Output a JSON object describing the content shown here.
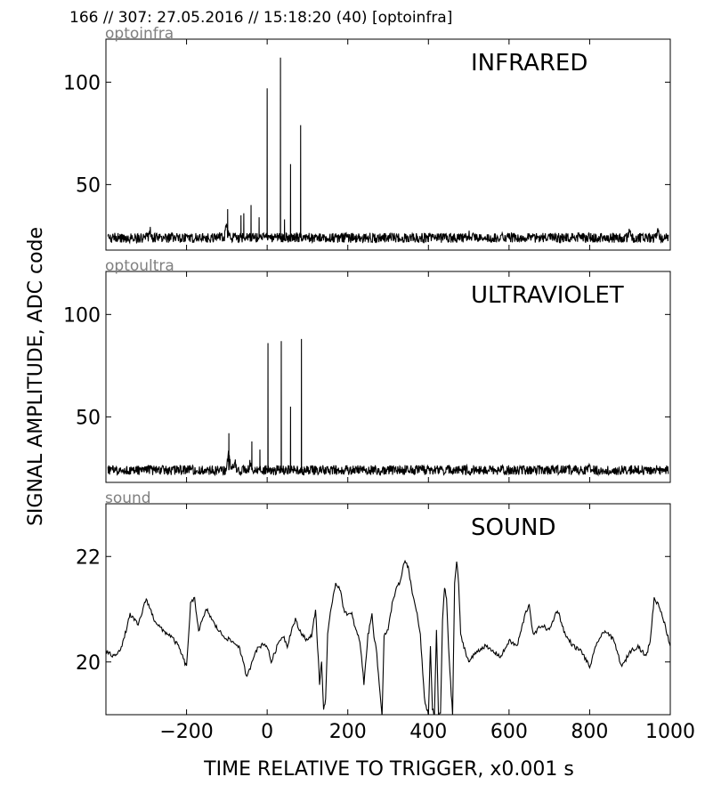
{
  "header": {
    "title": "166 // 307:   27.05.2016 // 15:18:20 (40)  [optoinfra]"
  },
  "figure": {
    "ylabel": "SIGNAL AMPLITUDE,  ADC code",
    "xlabel": "TIME RELATIVE TO TRIGGER,   x0.001 s"
  },
  "colors": {
    "line": "#000000",
    "tag": "#808080",
    "axis": "#000000"
  },
  "chart_data": [
    {
      "type": "line",
      "tag": "optoinfra",
      "title": "INFRARED",
      "xlim": [
        -400,
        1000
      ],
      "ylim": [
        18,
        121
      ],
      "yticks": [
        50,
        100
      ],
      "xticks": [
        -200,
        0,
        200,
        400,
        600,
        800,
        1000
      ],
      "xticklabels": [
        "",
        "",
        "",
        "",
        "",
        "",
        ""
      ],
      "baseline": 24,
      "noise": 1.2,
      "bumps": [
        {
          "x": -290,
          "y": 28
        },
        {
          "x": -120,
          "y": 26
        },
        {
          "x": -100,
          "y": 32
        },
        {
          "x": 500,
          "y": 26
        },
        {
          "x": 900,
          "y": 27
        },
        {
          "x": 970,
          "y": 28
        }
      ],
      "spikes": [
        {
          "x": -98,
          "y": 38
        },
        {
          "x": -65,
          "y": 35
        },
        {
          "x": -58,
          "y": 36
        },
        {
          "x": -40,
          "y": 40
        },
        {
          "x": -20,
          "y": 34
        },
        {
          "x": 0,
          "y": 97
        },
        {
          "x": 33,
          "y": 112
        },
        {
          "x": 43,
          "y": 33
        },
        {
          "x": 58,
          "y": 60
        },
        {
          "x": 83,
          "y": 79
        }
      ]
    },
    {
      "type": "line",
      "tag": "optoultra",
      "title": "ULTRAVIOLET",
      "xlim": [
        -400,
        1000
      ],
      "ylim": [
        18,
        121
      ],
      "yticks": [
        50,
        100
      ],
      "xticks": [
        -200,
        0,
        200,
        400,
        600,
        800,
        1000
      ],
      "xticklabels": [
        "",
        "",
        "",
        "",
        "",
        "",
        ""
      ],
      "baseline": 24,
      "noise": 1.2,
      "bumps": [
        {
          "x": -95,
          "y": 36
        },
        {
          "x": -80,
          "y": 28
        },
        {
          "x": -40,
          "y": 30
        },
        {
          "x": 430,
          "y": 26
        },
        {
          "x": 800,
          "y": 26
        }
      ],
      "spikes": [
        {
          "x": -95,
          "y": 42
        },
        {
          "x": -38,
          "y": 38
        },
        {
          "x": -18,
          "y": 34
        },
        {
          "x": 2,
          "y": 86
        },
        {
          "x": 35,
          "y": 87
        },
        {
          "x": 58,
          "y": 55
        },
        {
          "x": 85,
          "y": 88
        }
      ]
    },
    {
      "type": "line",
      "tag": "sound",
      "title": "SOUND",
      "xlim": [
        -400,
        1000
      ],
      "ylim": [
        19.0,
        23.0
      ],
      "yticks": [
        20,
        22
      ],
      "xticks": [
        -200,
        0,
        200,
        400,
        600,
        800,
        1000
      ],
      "xticklabels": [
        "−200",
        "0",
        "200",
        "400",
        "600",
        "800",
        "1000"
      ],
      "noise": 0.04,
      "x": [
        -400,
        -380,
        -360,
        -340,
        -320,
        -300,
        -280,
        -260,
        -240,
        -220,
        -200,
        -190,
        -180,
        -175,
        -170,
        -150,
        -130,
        -110,
        -90,
        -70,
        -50,
        -30,
        -10,
        0,
        10,
        20,
        30,
        40,
        50,
        60,
        70,
        80,
        90,
        100,
        110,
        120,
        125,
        130,
        135,
        140,
        145,
        150,
        155,
        160,
        170,
        180,
        190,
        200,
        210,
        220,
        230,
        240,
        250,
        260,
        265,
        270,
        280,
        285,
        290,
        300,
        310,
        320,
        330,
        340,
        350,
        360,
        370,
        380,
        390,
        400,
        405,
        410,
        415,
        420,
        425,
        430,
        435,
        440,
        445,
        450,
        455,
        460,
        465,
        470,
        475,
        480,
        500,
        520,
        540,
        560,
        580,
        600,
        620,
        640,
        650,
        660,
        680,
        700,
        720,
        740,
        760,
        780,
        800,
        820,
        840,
        860,
        880,
        900,
        920,
        940,
        950,
        960,
        970,
        980,
        990,
        1000
      ],
      "y": [
        20.2,
        20.1,
        20.3,
        20.9,
        20.7,
        21.2,
        20.8,
        20.6,
        20.5,
        20.3,
        19.9,
        21.1,
        21.2,
        20.9,
        20.6,
        21.0,
        20.7,
        20.5,
        20.4,
        20.3,
        19.7,
        20.2,
        20.35,
        20.3,
        20.0,
        20.2,
        20.4,
        20.5,
        20.3,
        20.6,
        20.8,
        20.6,
        20.5,
        20.4,
        20.5,
        21.0,
        20.3,
        19.6,
        20.0,
        19.1,
        19.3,
        20.5,
        20.8,
        21.1,
        21.5,
        21.4,
        21.0,
        20.9,
        20.9,
        20.6,
        20.4,
        19.6,
        20.5,
        20.9,
        20.5,
        20.3,
        19.4,
        19.0,
        20.5,
        20.6,
        21.1,
        21.4,
        21.5,
        21.9,
        21.8,
        21.3,
        21.0,
        20.5,
        19.3,
        19.0,
        20.3,
        19.1,
        19.0,
        20.6,
        19.0,
        19.0,
        20.8,
        21.4,
        21.2,
        20.3,
        19.6,
        19.0,
        21.5,
        21.9,
        21.5,
        20.5,
        20.0,
        20.2,
        20.3,
        20.2,
        20.1,
        20.4,
        20.3,
        20.9,
        21.1,
        20.5,
        20.7,
        20.6,
        21.0,
        20.5,
        20.3,
        20.2,
        19.9,
        20.4,
        20.6,
        20.4,
        19.9,
        20.2,
        20.3,
        20.1,
        20.4,
        21.2,
        21.1,
        20.9,
        20.6,
        20.3
      ]
    }
  ]
}
